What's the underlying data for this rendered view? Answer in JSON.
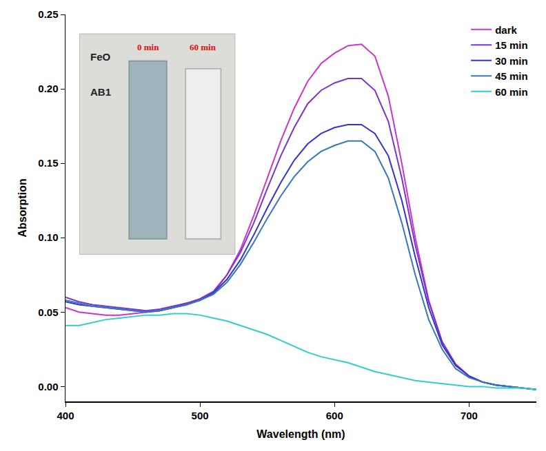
{
  "chart_data": {
    "type": "line",
    "x_label": "Wavelength (nm)",
    "y_label": "Absorption",
    "x": [
      400,
      410,
      420,
      430,
      440,
      450,
      460,
      470,
      480,
      490,
      500,
      510,
      520,
      530,
      540,
      550,
      560,
      570,
      580,
      590,
      600,
      610,
      620,
      630,
      640,
      650,
      660,
      670,
      680,
      690,
      700,
      710,
      720,
      730,
      740,
      750
    ],
    "series": [
      {
        "name": "dark",
        "color": "#cc33cc",
        "values": [
          0.053,
          0.05,
          0.049,
          0.048,
          0.048,
          0.049,
          0.05,
          0.051,
          0.053,
          0.056,
          0.058,
          0.063,
          0.075,
          0.092,
          0.115,
          0.14,
          0.165,
          0.187,
          0.205,
          0.217,
          0.224,
          0.229,
          0.23,
          0.222,
          0.195,
          0.15,
          0.1,
          0.058,
          0.03,
          0.015,
          0.007,
          0.003,
          0.001,
          0.0,
          -0.001,
          -0.002
        ]
      },
      {
        "name": "15 min",
        "color": "#7a33cc",
        "values": [
          0.06,
          0.057,
          0.055,
          0.054,
          0.053,
          0.052,
          0.051,
          0.052,
          0.054,
          0.056,
          0.059,
          0.064,
          0.075,
          0.09,
          0.11,
          0.133,
          0.155,
          0.174,
          0.19,
          0.199,
          0.204,
          0.207,
          0.207,
          0.199,
          0.178,
          0.14,
          0.095,
          0.057,
          0.03,
          0.015,
          0.007,
          0.003,
          0.001,
          0.0,
          -0.001,
          -0.002
        ]
      },
      {
        "name": "30 min",
        "color": "#3333cc",
        "values": [
          0.057,
          0.055,
          0.054,
          0.053,
          0.052,
          0.051,
          0.05,
          0.051,
          0.053,
          0.055,
          0.058,
          0.063,
          0.072,
          0.085,
          0.102,
          0.12,
          0.137,
          0.152,
          0.163,
          0.17,
          0.174,
          0.176,
          0.176,
          0.17,
          0.155,
          0.125,
          0.087,
          0.053,
          0.028,
          0.014,
          0.007,
          0.003,
          0.001,
          0.0,
          -0.001,
          -0.002
        ]
      },
      {
        "name": "45 min",
        "color": "#3377bb",
        "values": [
          0.058,
          0.056,
          0.054,
          0.053,
          0.052,
          0.051,
          0.05,
          0.051,
          0.053,
          0.055,
          0.058,
          0.062,
          0.07,
          0.082,
          0.097,
          0.113,
          0.128,
          0.141,
          0.151,
          0.158,
          0.162,
          0.165,
          0.165,
          0.158,
          0.14,
          0.11,
          0.075,
          0.045,
          0.025,
          0.012,
          0.006,
          0.003,
          0.001,
          0.0,
          -0.001,
          -0.002
        ]
      },
      {
        "name": "60 min",
        "color": "#33cccc",
        "values": [
          0.041,
          0.041,
          0.043,
          0.045,
          0.046,
          0.047,
          0.048,
          0.048,
          0.049,
          0.049,
          0.048,
          0.046,
          0.044,
          0.041,
          0.038,
          0.035,
          0.031,
          0.027,
          0.023,
          0.02,
          0.018,
          0.016,
          0.013,
          0.01,
          0.008,
          0.006,
          0.004,
          0.003,
          0.002,
          0.001,
          0.0,
          0.0,
          -0.001,
          -0.001,
          -0.001,
          -0.002
        ]
      }
    ],
    "xlim": [
      400,
      750
    ],
    "xticks": [
      400,
      500,
      600,
      700
    ],
    "ylim": [
      -0.01,
      0.25
    ],
    "yticks": [
      {
        "value": 0,
        "label": "0.00"
      },
      {
        "value": 0.05,
        "label": "0.05"
      },
      {
        "value": 0.1,
        "label": "0.10"
      },
      {
        "value": 0.15,
        "label": "0.15"
      },
      {
        "value": 0.2,
        "label": "0.20"
      },
      {
        "value": 0.25,
        "label": "0.25"
      }
    ],
    "grid": false,
    "legend": "upper right",
    "inset": {
      "labels": [
        "FeO",
        "AB1"
      ],
      "times": [
        "0 min",
        "60 min"
      ]
    }
  }
}
